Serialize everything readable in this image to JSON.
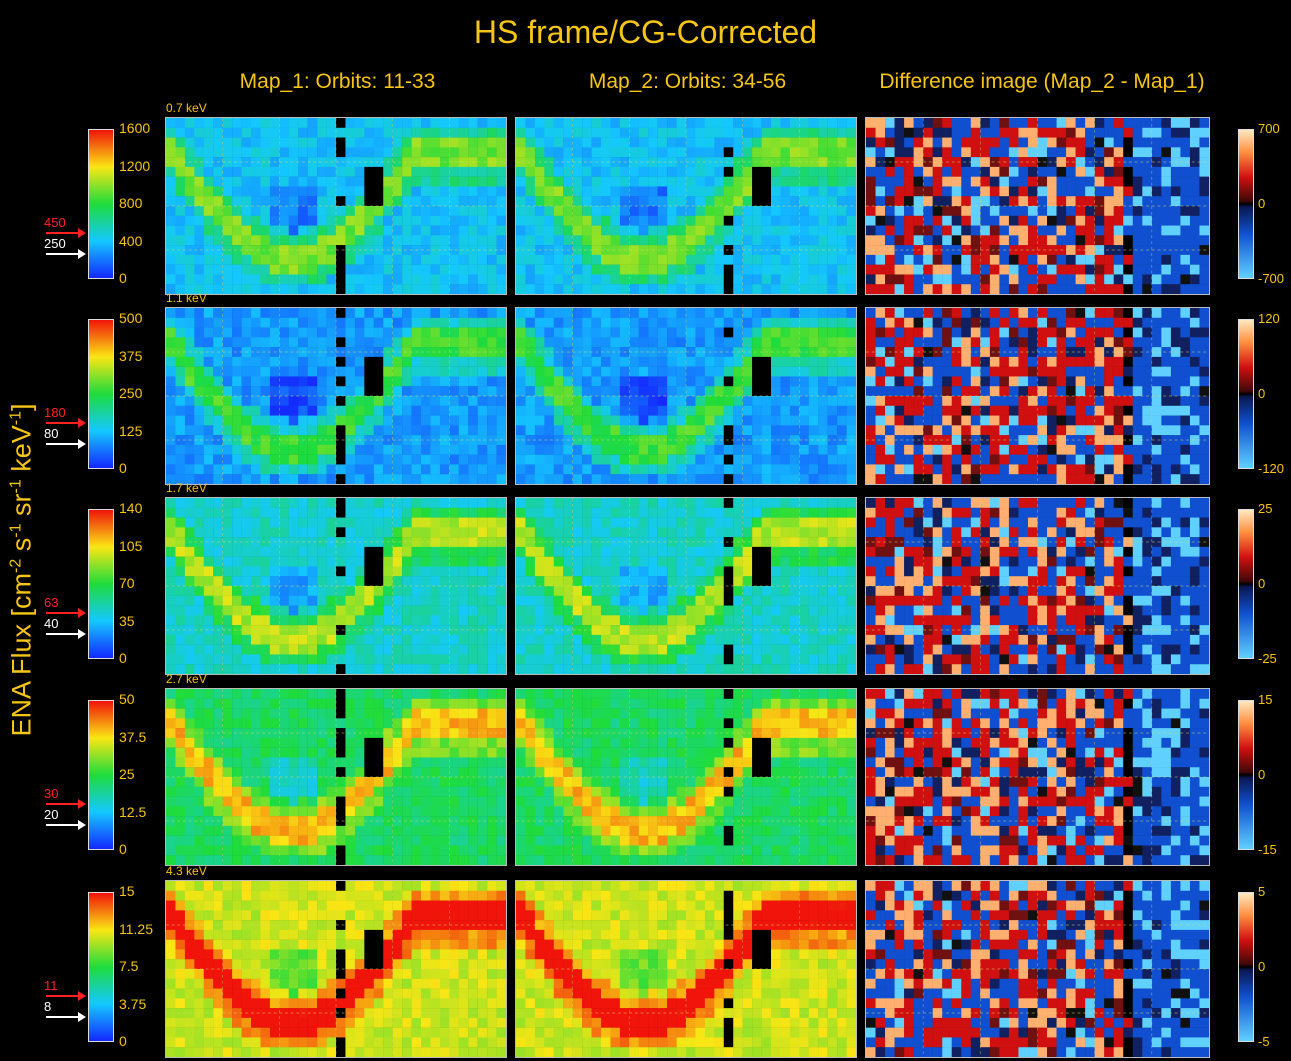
{
  "title": "HS frame/CG-Corrected",
  "columns": [
    "Map_1:  Orbits: 11-33",
    "Map_2:  Orbits: 34-56",
    "Difference image (Map_2 - Map_1)"
  ],
  "ylabel": {
    "main": "ENA Flux [cm",
    "e1": "-2",
    "s": " s",
    "e2": "-1",
    "sr": " sr",
    "e3": "-1",
    "kev": " keV",
    "e4": "-1",
    "end": "]"
  },
  "rows": [
    {
      "energy": "0.7 keV",
      "ticks": [
        "1600",
        "1200",
        "800",
        "400",
        "0"
      ],
      "red_marker": "450",
      "white_marker": "250",
      "diff_ticks": [
        "700",
        "0",
        "-700"
      ]
    },
    {
      "energy": "1.1 keV",
      "ticks": [
        "500",
        "375",
        "250",
        "125",
        "0"
      ],
      "red_marker": "180",
      "white_marker": "80",
      "diff_ticks": [
        "120",
        "0",
        "-120"
      ]
    },
    {
      "energy": "1.7 keV",
      "ticks": [
        "140",
        "105",
        "70",
        "35",
        "0"
      ],
      "red_marker": "63",
      "white_marker": "40",
      "diff_ticks": [
        "25",
        "0",
        "-25"
      ]
    },
    {
      "energy": "2.7 keV",
      "ticks": [
        "50",
        "37.5",
        "25",
        "12.5",
        "0"
      ],
      "red_marker": "30",
      "white_marker": "20",
      "diff_ticks": [
        "15",
        "0",
        "-15"
      ]
    },
    {
      "energy": "4.3 keV",
      "ticks": [
        "15",
        "11.25",
        "7.5",
        "3.75",
        "0"
      ],
      "red_marker": "11",
      "white_marker": "8",
      "diff_ticks": [
        "5",
        "0",
        "-5"
      ]
    }
  ],
  "colors": {
    "title": "#f5c518",
    "red_marker": "#ff2020",
    "white_marker": "#ffffff"
  }
}
